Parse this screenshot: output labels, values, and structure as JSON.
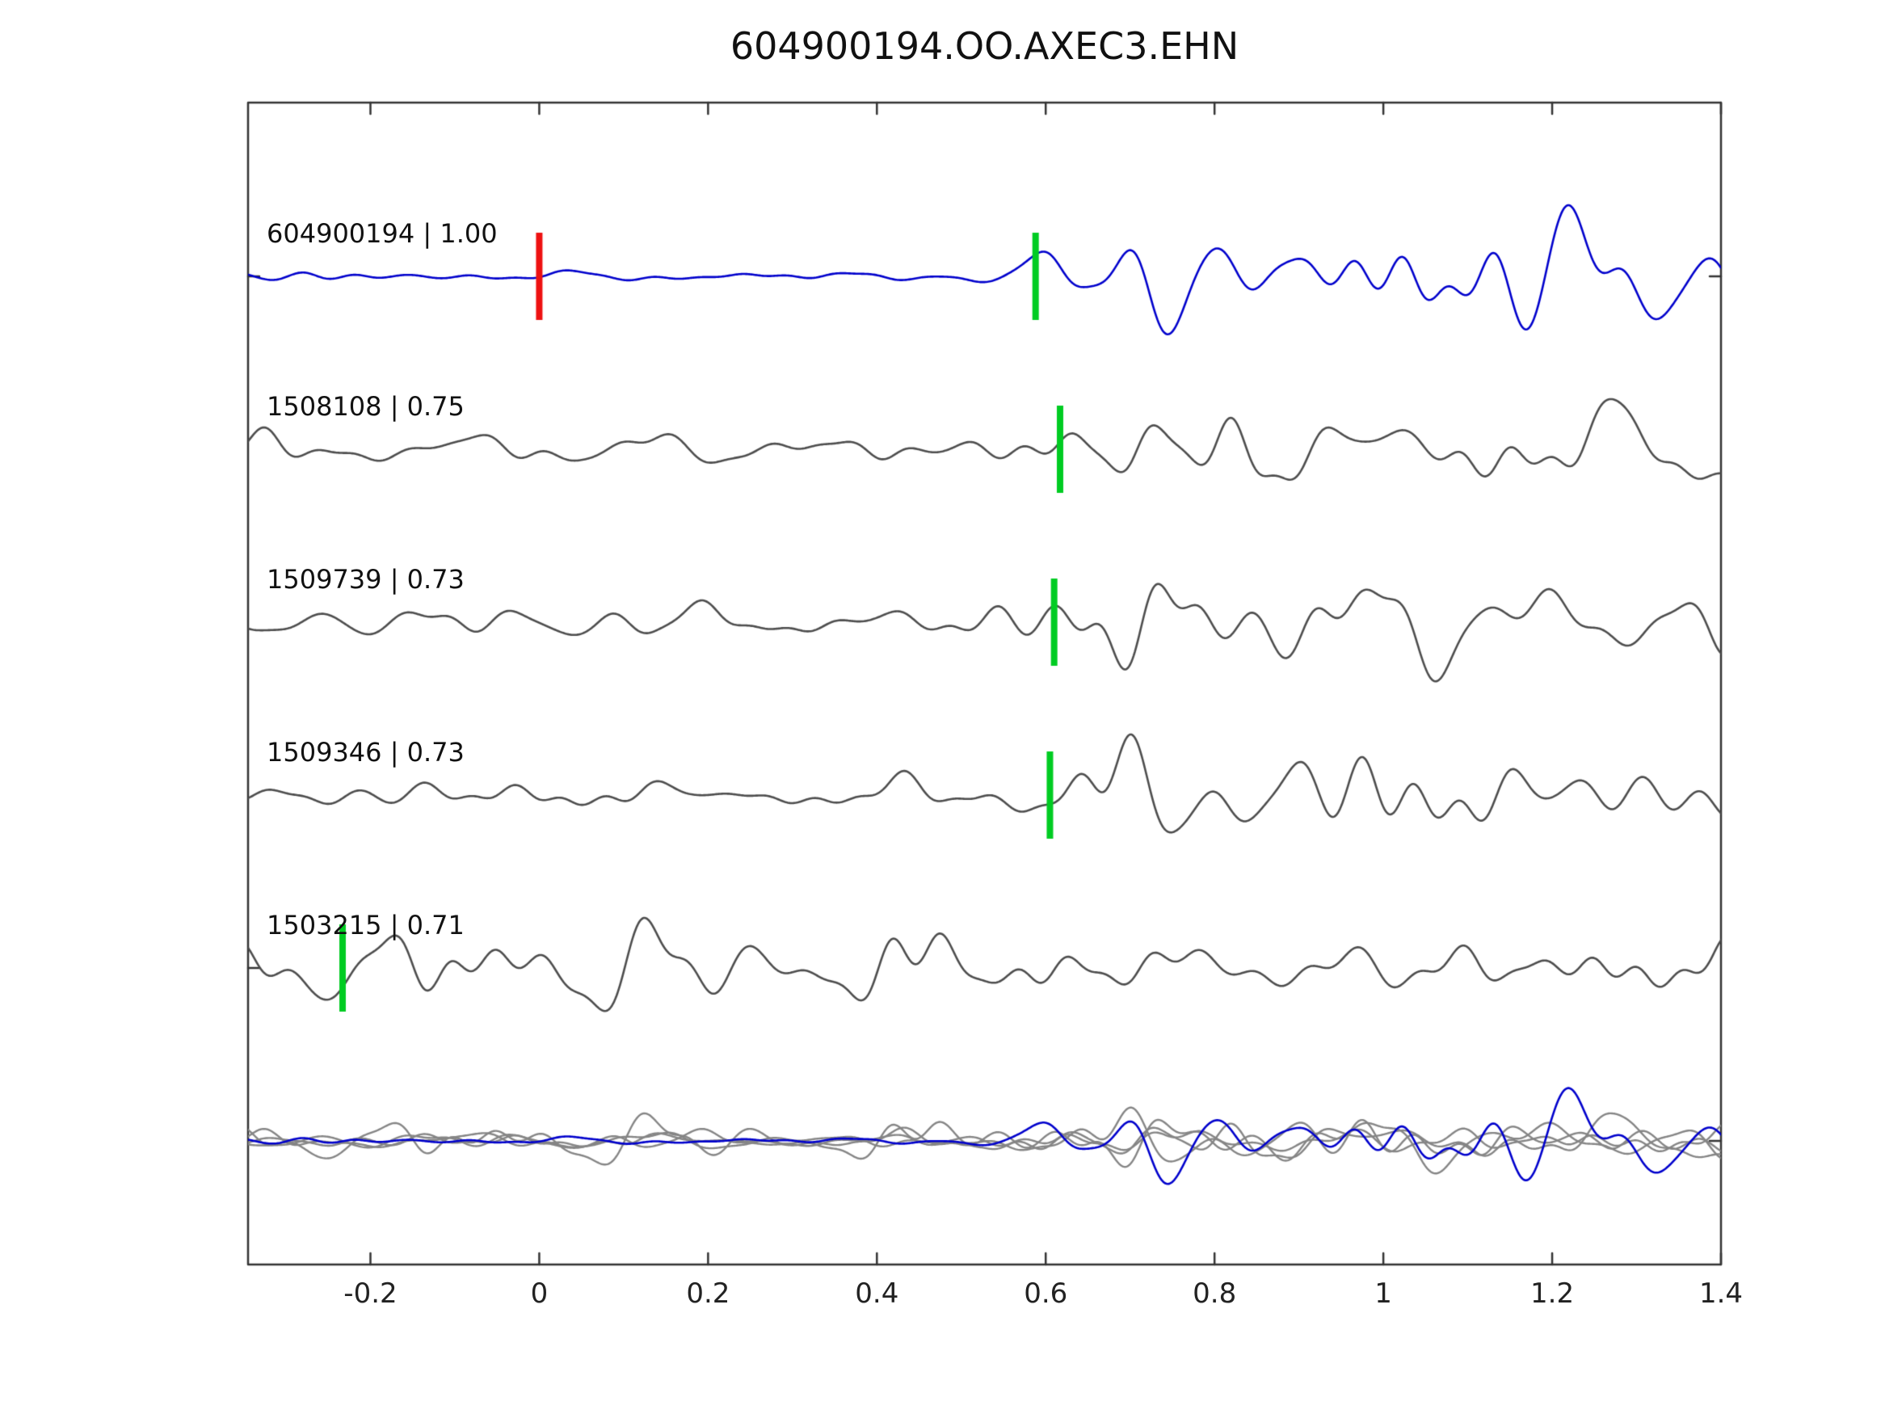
{
  "title": "604900194.OO.AXEC3.EHN",
  "chart_data": {
    "type": "line",
    "title": "604900194.OO.AXEC3.EHN",
    "xlabel": "",
    "ylabel": "",
    "xlim": [
      -0.345,
      1.4
    ],
    "grid": false,
    "legend": "none",
    "x_ticks": [
      -0.2,
      0,
      0.2,
      0.4,
      0.6,
      0.8,
      1,
      1.2,
      1.4
    ],
    "x_tick_labels": [
      "-0.2",
      "0",
      "0.2",
      "0.4",
      "0.6",
      "0.8",
      "1",
      "1.2",
      "1.4"
    ],
    "traces": [
      {
        "label": "604900194 | 1.00",
        "event_id": "604900194",
        "similarity": 1.0,
        "color": "#0000cc",
        "seed": 911,
        "amp_pre": 11,
        "amp_post": 88,
        "onset": 0.6,
        "markers": [
          {
            "x": 0.0,
            "color": "#ee1111",
            "name": "origin-marker"
          },
          {
            "x": 0.588,
            "color": "#00cc22",
            "name": "pick-marker"
          }
        ]
      },
      {
        "label": "1508108 | 0.75",
        "event_id": "1508108",
        "similarity": 0.75,
        "color": "#4d4d4d",
        "seed": 522,
        "amp_pre": 27,
        "amp_post": 74,
        "onset": 0.625,
        "markers": [
          {
            "x": 0.617,
            "color": "#00cc22",
            "name": "pick-marker"
          }
        ]
      },
      {
        "label": "1509739 | 0.73",
        "event_id": "1509739",
        "similarity": 0.73,
        "color": "#4d4d4d",
        "seed": 733,
        "amp_pre": 27,
        "amp_post": 74,
        "onset": 0.62,
        "markers": [
          {
            "x": 0.61,
            "color": "#00cc22",
            "name": "pick-marker"
          }
        ]
      },
      {
        "label": "1509346 | 0.73",
        "event_id": "1509346",
        "similarity": 0.73,
        "color": "#4d4d4d",
        "seed": 344,
        "amp_pre": 30,
        "amp_post": 76,
        "onset": 0.615,
        "markers": [
          {
            "x": 0.605,
            "color": "#00cc22",
            "name": "pick-marker"
          }
        ]
      },
      {
        "label": "1503215 | 0.71",
        "event_id": "1503215",
        "similarity": 0.71,
        "color": "#4d4d4d",
        "seed": 155,
        "amp_pre": 58,
        "amp_post": 62,
        "onset": -0.22,
        "markers": [
          {
            "x": -0.233,
            "color": "#00cc22",
            "name": "pick-marker"
          }
        ]
      }
    ],
    "overlay": {
      "description": "all traces superimposed",
      "amp_scale": 0.55,
      "gray_color": "#858585",
      "blue_color": "#0000cc"
    },
    "axis_color": "#333333",
    "tick_color": "#333333"
  }
}
